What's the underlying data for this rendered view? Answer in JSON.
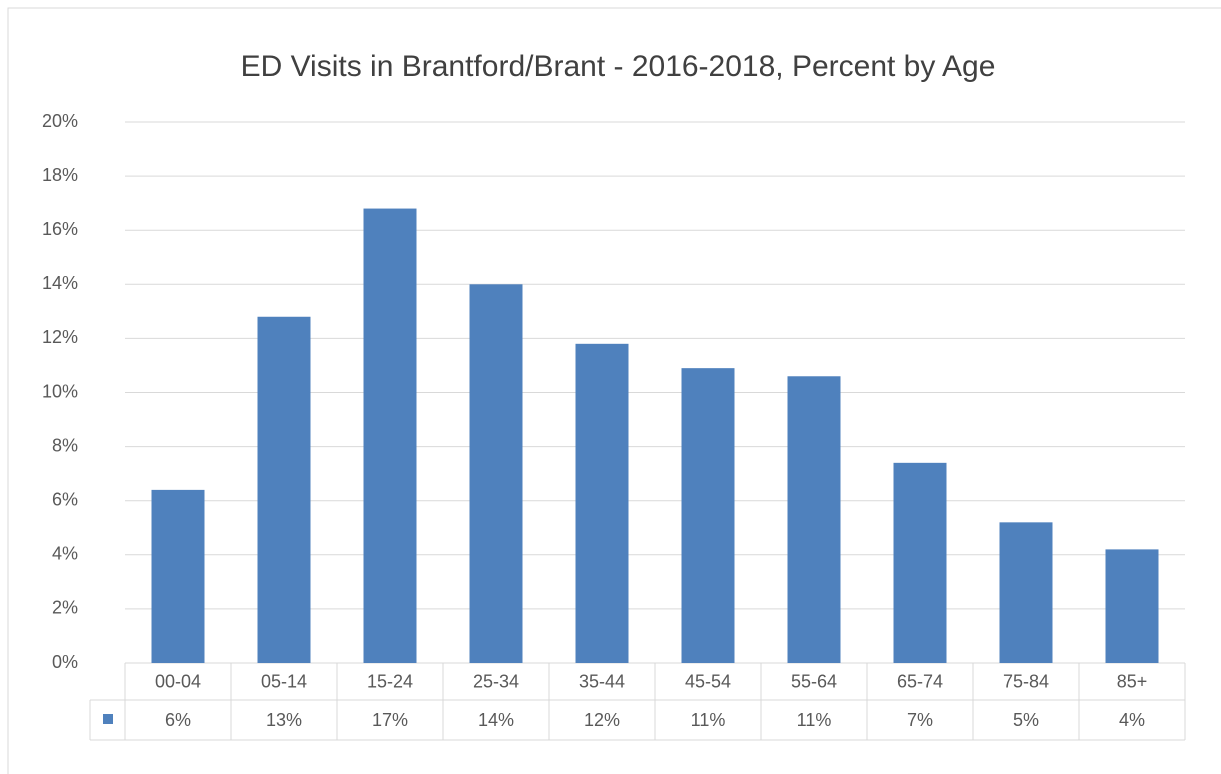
{
  "chart_data": {
    "type": "bar",
    "title": "ED Visits in Brantford/Brant - 2016-2018, Percent by Age",
    "categories": [
      "00-04",
      "05-14",
      "15-24",
      "25-34",
      "35-44",
      "45-54",
      "55-64",
      "65-74",
      "75-84",
      "85+"
    ],
    "values": [
      6.4,
      12.8,
      16.8,
      14.0,
      11.8,
      10.9,
      10.6,
      7.4,
      5.2,
      4.2
    ],
    "value_labels": [
      "6%",
      "13%",
      "17%",
      "14%",
      "12%",
      "11%",
      "11%",
      "7%",
      "5%",
      "4%"
    ],
    "color": "#4f81bd",
    "ylim": [
      0,
      20
    ],
    "yticks": [
      {
        "value": 0,
        "label": "0%"
      },
      {
        "value": 2,
        "label": "2%"
      },
      {
        "value": 4,
        "label": "4%"
      },
      {
        "value": 6,
        "label": "6%"
      },
      {
        "value": 8,
        "label": "8%"
      },
      {
        "value": 10,
        "label": "10%"
      },
      {
        "value": 12,
        "label": "12%"
      },
      {
        "value": 14,
        "label": "14%"
      },
      {
        "value": 16,
        "label": "16%"
      },
      {
        "value": 18,
        "label": "18%"
      },
      {
        "value": 20,
        "label": "20%"
      }
    ],
    "grid": true
  }
}
